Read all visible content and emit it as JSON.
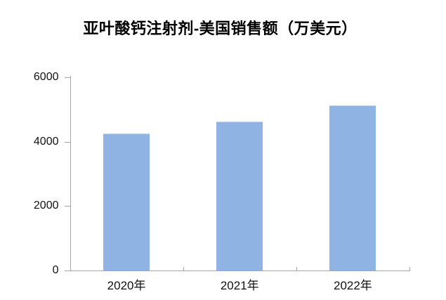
{
  "page": {
    "background_color": "#ffffff"
  },
  "chart_data": {
    "type": "bar",
    "title": "亚叶酸钙注射剂-美国销售额（万美元）",
    "categories": [
      "2020年",
      "2021年",
      "2022年"
    ],
    "values": [
      4250,
      4630,
      5130
    ],
    "ylim": [
      0,
      6000
    ],
    "yticks": [
      0,
      2000,
      4000,
      6000
    ],
    "xlabel": "",
    "ylabel": "",
    "grid": false,
    "legend": "none",
    "bar_color": "#8fb3e2",
    "axis_color": "#a6a6a6",
    "title_color": "#000000",
    "tick_label_color": "#111111"
  }
}
